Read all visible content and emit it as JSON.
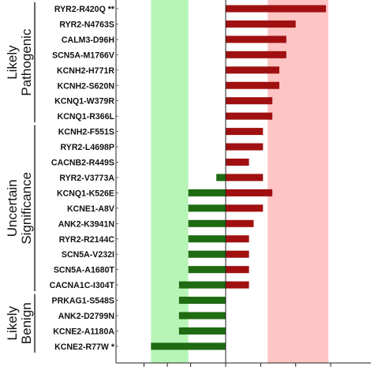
{
  "chart_data": {
    "type": "bar",
    "orientation": "horizontal",
    "title": "",
    "xlabel": "",
    "ylabel": "",
    "xlim": [
      -4.7,
      5.9
    ],
    "grid": false,
    "zero_line": true,
    "colors": {
      "positive": "#a01010",
      "negative": "#1e6b12",
      "benign_zone": "#b7f5b7",
      "pathogenic_zone": "#ffc4c4"
    },
    "shaded_regions": [
      {
        "name": "benign-zone",
        "from": -3.2,
        "to": -1.6
      },
      {
        "name": "pathogenic-zone",
        "from": 1.8,
        "to": 4.4
      }
    ],
    "groups": [
      {
        "label": "Likely Pathogenic",
        "lines": [
          "Likely",
          "Pathogenic"
        ]
      },
      {
        "label": "Uncertain Significance",
        "lines": [
          "Uncertain",
          "Significance"
        ]
      },
      {
        "label": "Likely Benign",
        "lines": [
          "Likely",
          "Benign"
        ]
      }
    ],
    "bars": [
      {
        "label": "RYR2-R420Q **",
        "value": 4.3,
        "group": 0
      },
      {
        "label": "RYR2-N4763S",
        "value": 3.0,
        "group": 0
      },
      {
        "label": "CALM3-D96H",
        "value": 2.6,
        "group": 0
      },
      {
        "label": "SCN5A-M1766V",
        "value": 2.6,
        "group": 0
      },
      {
        "label": "KCNH2-H771R",
        "value": 2.3,
        "group": 0
      },
      {
        "label": "KCNH2-S620N",
        "value": 2.3,
        "group": 0
      },
      {
        "label": "KCNQ1-W379R",
        "value": 2.0,
        "group": 0
      },
      {
        "label": "KCNQ1-R366L",
        "value": 2.0,
        "group": 0
      },
      {
        "label": "KCNH2-F551S",
        "value": 1.6,
        "group": 1
      },
      {
        "label": "RYR2-L4698P",
        "value": 1.6,
        "group": 1
      },
      {
        "label": "CACNB2-R449S",
        "value": 1.0,
        "group": 1
      },
      {
        "label": "RYR2-V3773A",
        "value": 1.6,
        "negative": -0.4,
        "group": 1
      },
      {
        "label": "KCNQ1-K526E",
        "value": 2.0,
        "negative": -1.6,
        "group": 1
      },
      {
        "label": "KCNE1-A8V",
        "value": 1.6,
        "negative": -1.6,
        "group": 1
      },
      {
        "label": "ANK2-K3941N",
        "value": 1.2,
        "negative": -1.6,
        "group": 1
      },
      {
        "label": "RYR2-R2144C",
        "value": 1.0,
        "negative": -1.6,
        "group": 1
      },
      {
        "label": "SCN5A-V232I",
        "value": 1.0,
        "negative": -1.6,
        "group": 1
      },
      {
        "label": "SCN5A-A1680T",
        "value": 1.0,
        "negative": -1.6,
        "group": 1
      },
      {
        "label": "CACNA1C-I304T",
        "value": 1.0,
        "negative": -2.0,
        "group": 1
      },
      {
        "label": "PRKAG1-S548S",
        "value": 0,
        "negative": -2.0,
        "group": 2
      },
      {
        "label": "ANK2-D2799N",
        "value": 0,
        "negative": -2.0,
        "group": 2
      },
      {
        "label": "KCNE2-A1180A",
        "value": 0,
        "negative": -2.0,
        "group": 2
      },
      {
        "label": "KCNE2-R77W *",
        "value": 0,
        "negative": -3.2,
        "group": 2
      }
    ],
    "xticks": [
      -3.5,
      -2.5,
      -1.5,
      0,
      1.5,
      3.0,
      4.5
    ]
  }
}
